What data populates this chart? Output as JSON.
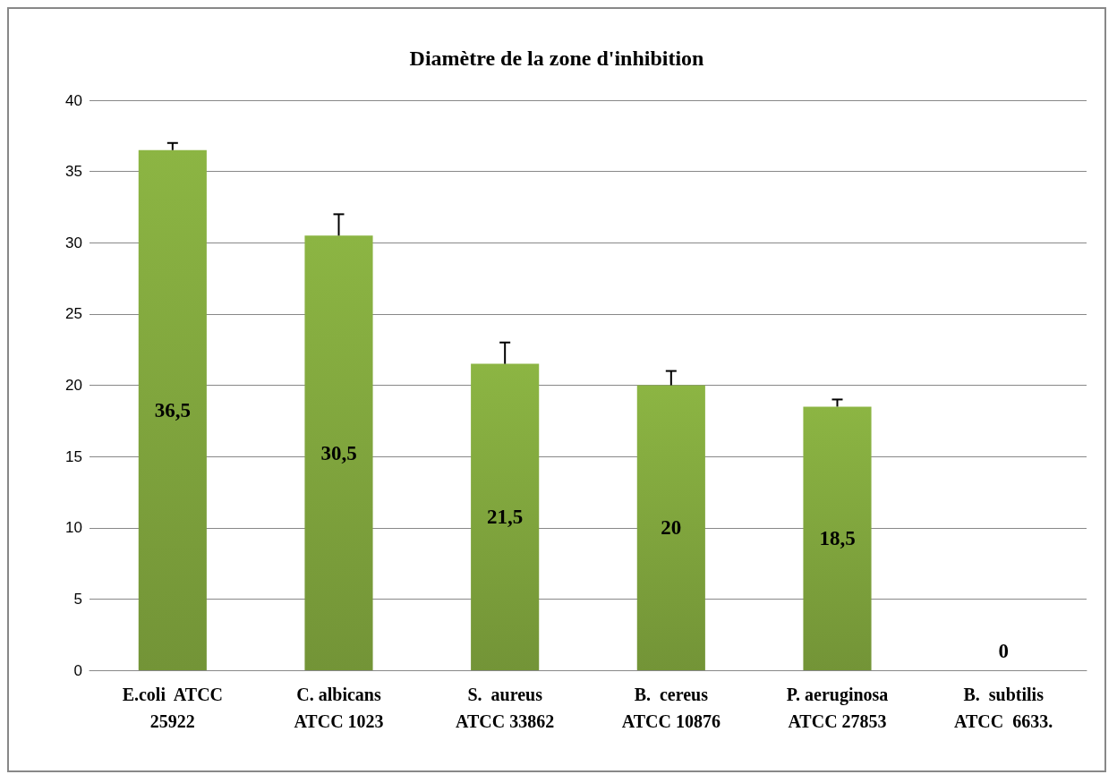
{
  "chart_data": {
    "type": "bar",
    "title": "Diamètre de la zone d'inhibition",
    "categories": [
      "E.coli  ATCC\n25922",
      "C. albicans\nATCC 1023",
      "S.  aureus\nATCC 33862",
      "B.  cereus\nATCC 10876",
      "P. aeruginosa\nATCC 27853",
      "B.  subtilis\nATCC  6633."
    ],
    "values": [
      36.5,
      30.5,
      21.5,
      20,
      18.5,
      0
    ],
    "value_labels": [
      "36,5",
      "30,5",
      "21,5",
      "20",
      "18,5",
      "0"
    ],
    "errors": [
      [
        36.5,
        37
      ],
      [
        30.5,
        32
      ],
      [
        21.5,
        23
      ],
      [
        20,
        21
      ],
      [
        18.5,
        19
      ],
      null
    ],
    "color": "#8cb543",
    "ylim": [
      0,
      40
    ],
    "yticks": [
      0,
      5,
      10,
      15,
      20,
      25,
      30,
      35,
      40
    ],
    "grid": "y"
  }
}
